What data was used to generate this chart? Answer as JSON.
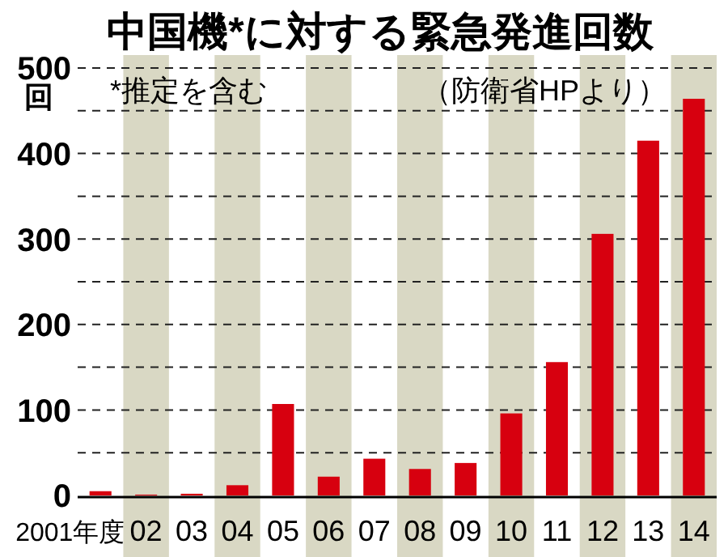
{
  "chart_data": {
    "type": "bar",
    "title": "中国機*に対する緊急発進回数",
    "subtitle": "*推定を含む",
    "ylabel": "回",
    "annotations": [
      "（防衛省HPより）"
    ],
    "categories": [
      "2001年度",
      "02",
      "03",
      "04",
      "05",
      "06",
      "07",
      "08",
      "09",
      "10",
      "11",
      "12",
      "13",
      "14"
    ],
    "values": [
      5,
      1,
      2,
      12,
      107,
      22,
      43,
      31,
      38,
      96,
      156,
      306,
      415,
      464
    ],
    "color": "#d7000f",
    "ylim": [
      0,
      500
    ],
    "yticks": [
      0,
      {
        "value": 50,
        "label": null
      },
      100,
      {
        "value": 150,
        "label": null
      },
      200,
      {
        "value": 250,
        "label": null
      },
      300,
      {
        "value": 350,
        "label": null
      },
      400,
      {
        "value": 450,
        "label": null
      },
      500
    ],
    "bands": [
      {
        "axis": "x",
        "from": "02",
        "to": "02",
        "color": "#d9d8c4"
      },
      {
        "axis": "x",
        "from": "04",
        "to": "04",
        "color": "#d9d8c4"
      },
      {
        "axis": "x",
        "from": "06",
        "to": "06",
        "color": "#d9d8c4"
      },
      {
        "axis": "x",
        "from": "08",
        "to": "08",
        "color": "#d9d8c4"
      },
      {
        "axis": "x",
        "from": "10",
        "to": "10",
        "color": "#d9d8c4"
      },
      {
        "axis": "x",
        "from": "12",
        "to": "12",
        "color": "#d9d8c4"
      },
      {
        "axis": "x",
        "from": "14",
        "to": "14",
        "color": "#d9d8c4"
      }
    ],
    "grid": "y"
  }
}
